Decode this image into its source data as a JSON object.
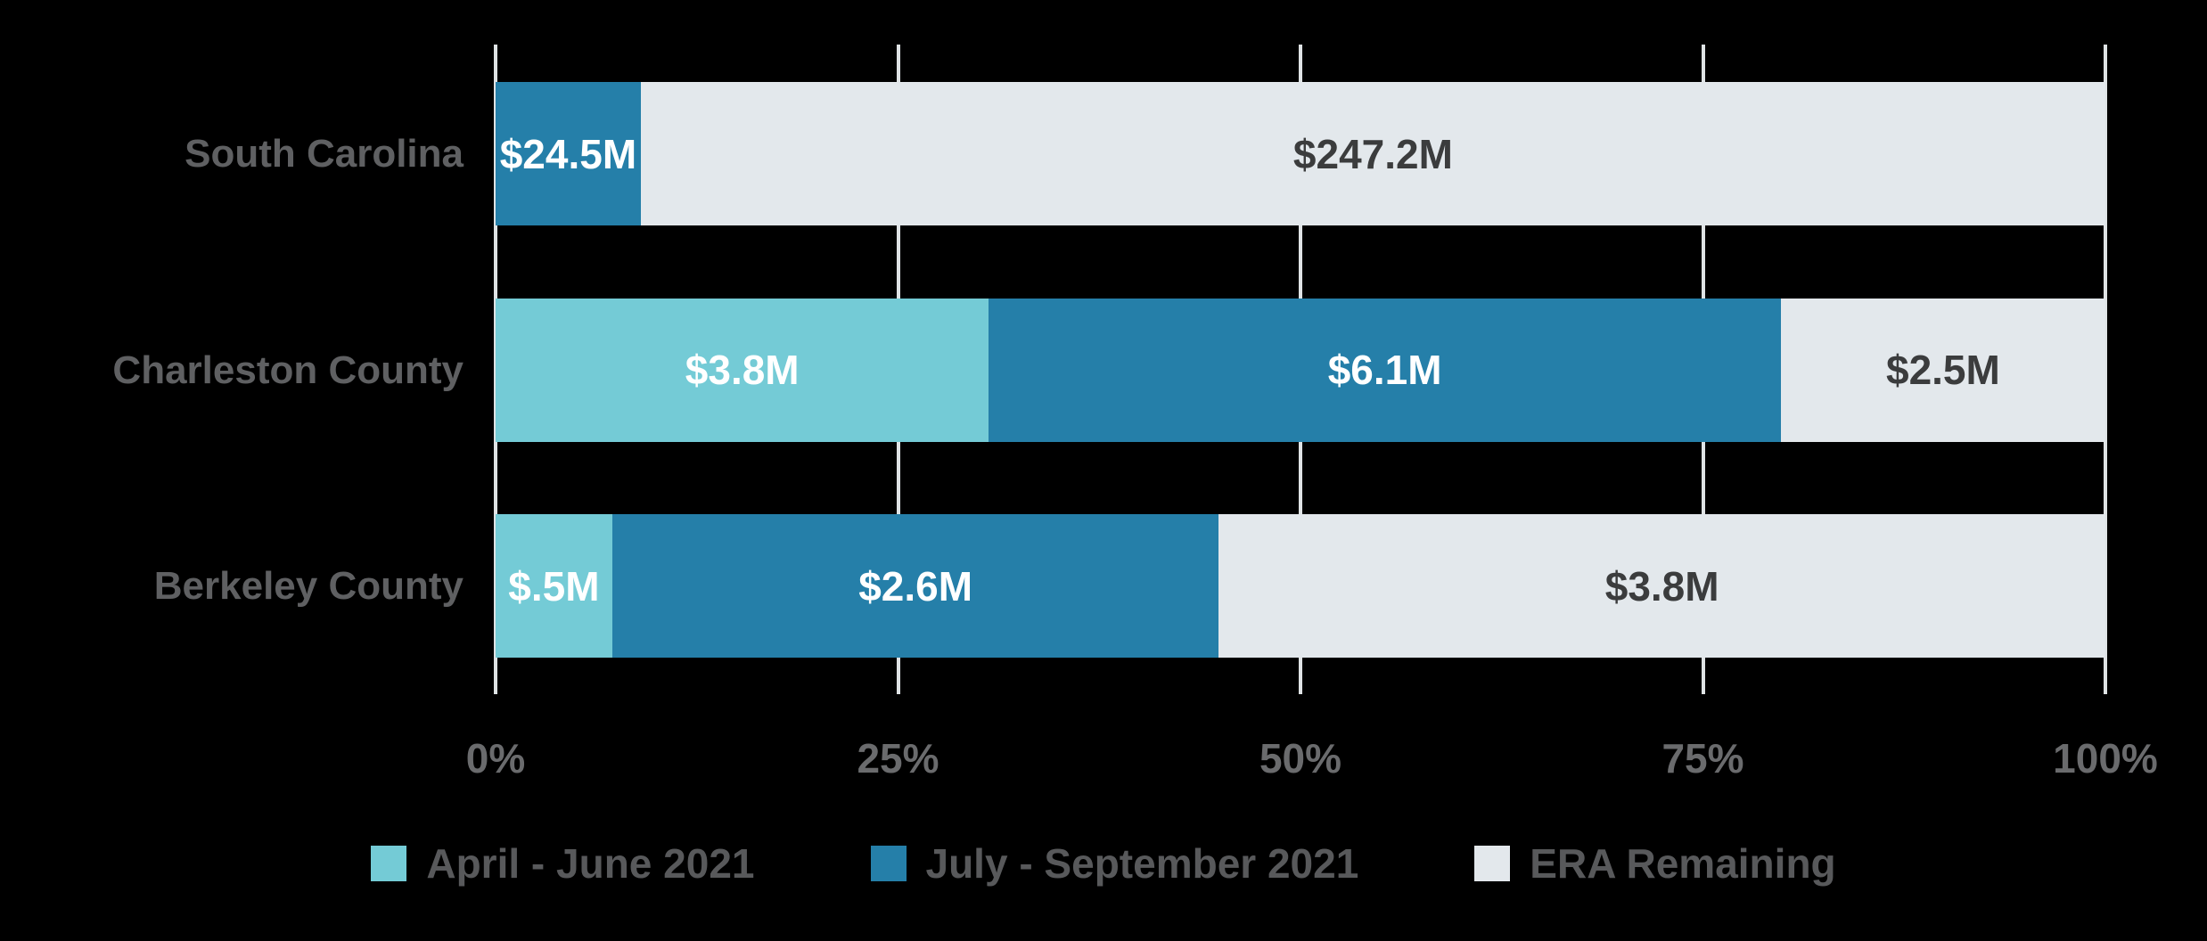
{
  "background_color": "#000000",
  "chart_data": {
    "type": "bar",
    "orientation": "horizontal",
    "stacked": true,
    "normalized": "each row scaled to percent of row total",
    "title": "",
    "xlabel": "",
    "ylabel": "",
    "categories": [
      "South Carolina",
      "Charleston County",
      "Berkeley County"
    ],
    "series": [
      {
        "name": "April - June 2021",
        "color": "#74cbd6",
        "label_color": "#ffffff",
        "values": [
          null,
          3.8,
          0.5
        ],
        "labels": [
          "",
          "$3.8M",
          "$.5M"
        ]
      },
      {
        "name": "July - September 2021",
        "color": "#257fa9",
        "label_color": "#ffffff",
        "values": [
          24.5,
          6.1,
          2.6
        ],
        "labels": [
          "$24.5M",
          "$6.1M",
          "$2.6M"
        ]
      },
      {
        "name": "ERA Remaining",
        "color": "#e3e8ec",
        "label_color": "#3b3c3d",
        "values": [
          247.2,
          2.5,
          3.8
        ],
        "labels": [
          "$247.2M",
          "$2.5M",
          "$3.8M"
        ]
      }
    ],
    "x_axis": {
      "ticks": [
        "0%",
        "25%",
        "50%",
        "75%",
        "100%"
      ],
      "tick_values": [
        0,
        25,
        50,
        75,
        100
      ],
      "range": [
        0,
        100
      ],
      "grid": true,
      "gridline_color": "#dfe3e5"
    },
    "legend": {
      "position": "bottom",
      "items": [
        "April - June 2021",
        "July - September 2021",
        "ERA Remaining"
      ]
    },
    "text_colors": {
      "category_label": "#5f6062",
      "tick_label": "#6a6b6d",
      "legend_label": "#58595b"
    }
  }
}
